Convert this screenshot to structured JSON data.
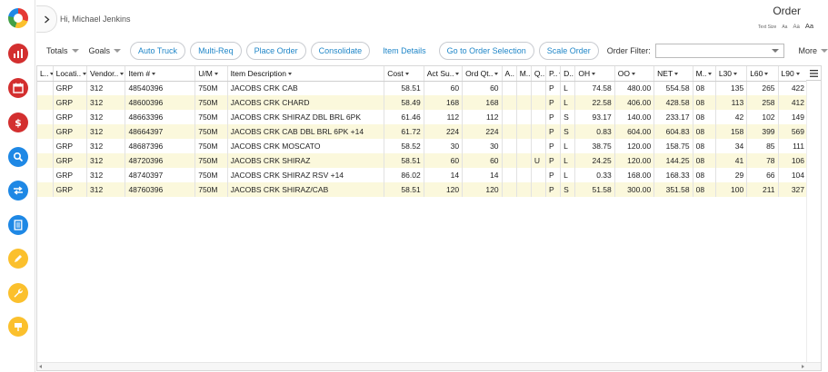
{
  "header": {
    "greeting": "Hi, Michael Jenkins",
    "title": "Order",
    "text_size_label": "Text Size",
    "text_size_options": [
      "Aa",
      "Aa",
      "Aa"
    ]
  },
  "sidebar": {
    "items": [
      {
        "name": "reports",
        "color": "#d32f2f",
        "icon": "bar-chart-icon"
      },
      {
        "name": "calendar",
        "color": "#d32f2f",
        "icon": "calendar-icon"
      },
      {
        "name": "pricing",
        "color": "#d32f2f",
        "icon": "dollar-icon"
      },
      {
        "name": "search",
        "color": "#1e88e5",
        "icon": "search-icon"
      },
      {
        "name": "transfer",
        "color": "#1e88e5",
        "icon": "transfer-icon"
      },
      {
        "name": "documents",
        "color": "#1e88e5",
        "icon": "document-icon"
      },
      {
        "name": "edit",
        "color": "#fbc02d",
        "icon": "pencil-icon"
      },
      {
        "name": "tools",
        "color": "#fbc02d",
        "icon": "wrench-icon"
      },
      {
        "name": "signage",
        "color": "#fbc02d",
        "icon": "sign-icon"
      }
    ]
  },
  "toolbar": {
    "totals": "Totals",
    "goals": "Goals",
    "auto_truck": "Auto Truck",
    "multi_req": "Multi-Req",
    "place_order": "Place Order",
    "consolidate": "Consolidate",
    "item_details": "Item Details",
    "go_to_order_selection": "Go to Order Selection",
    "scale_order": "Scale Order",
    "order_filter_label": "Order Filter:",
    "order_filter_value": "",
    "more": "More"
  },
  "grid": {
    "columns": [
      "L..",
      "Locati..",
      "Vendor..",
      "Item #",
      "U/M",
      "Item Description",
      "Cost",
      "Act Su..",
      "Ord Qt..",
      "A..",
      "M..",
      "Q..",
      "P..",
      "D..",
      "OH",
      "OO",
      "NET",
      "M..",
      "L30",
      "L60",
      "L90"
    ],
    "rows": [
      [
        "",
        "GRP",
        "312",
        "48540396",
        "750M",
        "JACOBS CRK CAB",
        "58.51",
        "60",
        "60",
        "",
        "",
        "",
        "P",
        "L",
        "74.58",
        "480.00",
        "554.58",
        "08",
        "135",
        "265",
        "422"
      ],
      [
        "",
        "GRP",
        "312",
        "48600396",
        "750M",
        "JACOBS CRK CHARD",
        "58.49",
        "168",
        "168",
        "",
        "",
        "",
        "P",
        "L",
        "22.58",
        "406.00",
        "428.58",
        "08",
        "113",
        "258",
        "412"
      ],
      [
        "",
        "GRP",
        "312",
        "48663396",
        "750M",
        "JACOBS CRK SHIRAZ DBL BRL 6PK",
        "61.46",
        "112",
        "112",
        "",
        "",
        "",
        "P",
        "S",
        "93.17",
        "140.00",
        "233.17",
        "08",
        "42",
        "102",
        "149"
      ],
      [
        "",
        "GRP",
        "312",
        "48664397",
        "750M",
        "JACOBS CRK CAB DBL BRL 6PK +14",
        "61.72",
        "224",
        "224",
        "",
        "",
        "",
        "P",
        "S",
        "0.83",
        "604.00",
        "604.83",
        "08",
        "158",
        "399",
        "569"
      ],
      [
        "",
        "GRP",
        "312",
        "48687396",
        "750M",
        "JACOBS CRK MOSCATO",
        "58.52",
        "30",
        "30",
        "",
        "",
        "",
        "P",
        "L",
        "38.75",
        "120.00",
        "158.75",
        "08",
        "34",
        "85",
        "111"
      ],
      [
        "",
        "GRP",
        "312",
        "48720396",
        "750M",
        "JACOBS CRK SHIRAZ",
        "58.51",
        "60",
        "60",
        "",
        "",
        "U",
        "P",
        "L",
        "24.25",
        "120.00",
        "144.25",
        "08",
        "41",
        "78",
        "106"
      ],
      [
        "",
        "GRP",
        "312",
        "48740397",
        "750M",
        "JACOBS CRK SHIRAZ RSV +14",
        "86.02",
        "14",
        "14",
        "",
        "",
        "",
        "P",
        "L",
        "0.33",
        "168.00",
        "168.33",
        "08",
        "29",
        "66",
        "104"
      ],
      [
        "",
        "GRP",
        "312",
        "48760396",
        "750M",
        "JACOBS CRK SHIRAZ/CAB",
        "58.51",
        "120",
        "120",
        "",
        "",
        "",
        "P",
        "S",
        "51.58",
        "300.00",
        "351.58",
        "08",
        "100",
        "211",
        "327"
      ]
    ]
  }
}
